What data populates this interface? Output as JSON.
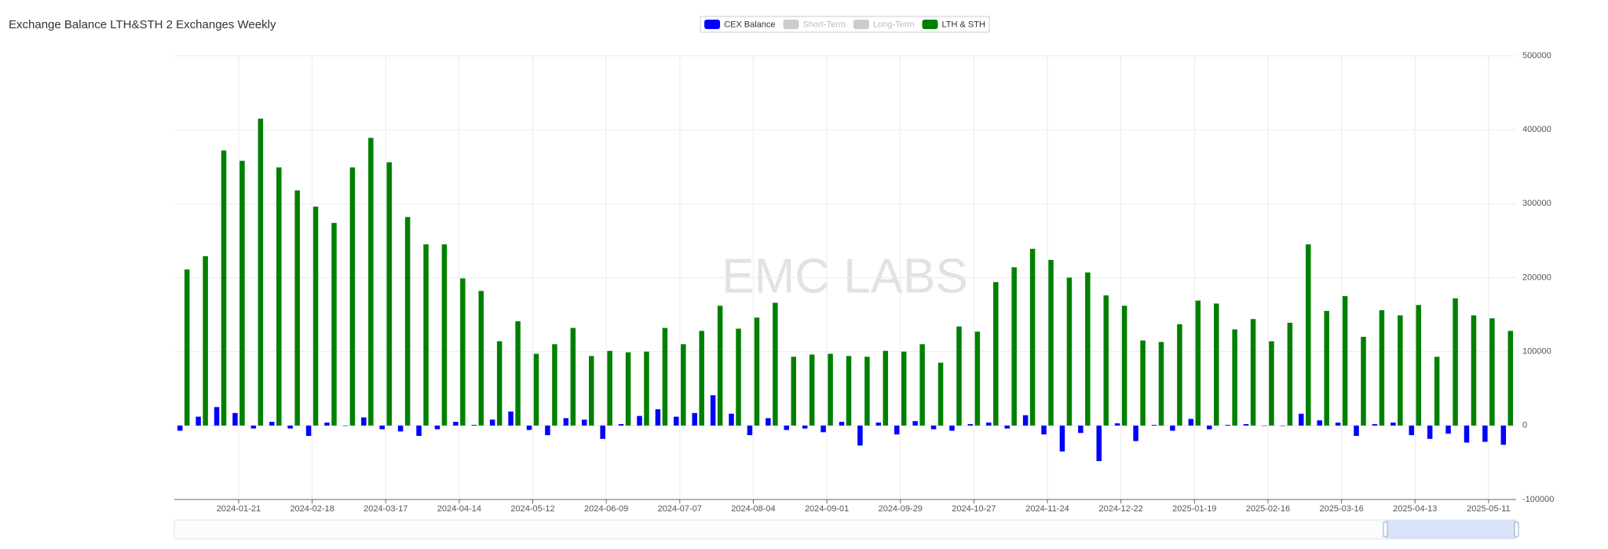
{
  "chart_data": {
    "type": "bar",
    "title": "Exchange Balance LTH&STH 2 Exchanges Weekly",
    "watermark": "EMC LABS",
    "categories": [
      null,
      null,
      null,
      "2024-01-21",
      null,
      null,
      null,
      "2024-02-18",
      null,
      null,
      null,
      "2024-03-17",
      null,
      null,
      null,
      "2024-04-14",
      null,
      null,
      null,
      "2024-05-12",
      null,
      null,
      null,
      "2024-06-09",
      null,
      null,
      null,
      "2024-07-07",
      null,
      null,
      null,
      "2024-08-04",
      null,
      null,
      null,
      "2024-09-01",
      null,
      null,
      null,
      "2024-09-29",
      null,
      null,
      null,
      "2024-10-27",
      null,
      null,
      null,
      "2024-11-24",
      null,
      null,
      null,
      "2024-12-22",
      null,
      null,
      null,
      "2025-01-19",
      null,
      null,
      null,
      "2025-02-16",
      null,
      null,
      null,
      "2025-03-16",
      null,
      null,
      null,
      "2025-04-13",
      null,
      null,
      null,
      "2025-05-11",
      null
    ],
    "series": [
      {
        "name": "CEX Balance",
        "color": "#0000ff",
        "values": [
          -7000,
          12000,
          25000,
          17000,
          -4000,
          5000,
          -4000,
          -14000,
          4000,
          0,
          11000,
          -5000,
          -8000,
          -14000,
          -5000,
          5000,
          1000,
          8000,
          19000,
          -6000,
          -13000,
          10000,
          8000,
          -18000,
          2000,
          13000,
          22000,
          12000,
          17000,
          41000,
          16000,
          -13000,
          10000,
          -6000,
          -4000,
          -9000,
          5000,
          -27000,
          4000,
          -12000,
          6000,
          -5000,
          -7000,
          2000,
          4000,
          -4000,
          14000,
          -12000,
          -35000,
          -10000,
          -48000,
          3000,
          -21000,
          1000,
          -7000,
          9000,
          -5000,
          1000,
          2000,
          0,
          0,
          16000,
          7000,
          4000,
          -14000,
          2000,
          4000,
          -13000,
          -18000,
          -11000,
          -23000,
          -22000,
          -26000
        ]
      },
      {
        "name": "Short-Term",
        "color": "#cccccc",
        "hidden": true
      },
      {
        "name": "Long-Term",
        "color": "#cccccc",
        "hidden": true
      },
      {
        "name": "LTH & STH",
        "color": "#008000",
        "values": [
          211000,
          229000,
          372000,
          358000,
          415000,
          349000,
          318000,
          296000,
          274000,
          349000,
          389000,
          356000,
          282000,
          245000,
          245000,
          199000,
          182000,
          114000,
          141000,
          97000,
          110000,
          132000,
          94000,
          101000,
          99000,
          100000,
          132000,
          110000,
          128000,
          162000,
          131000,
          146000,
          166000,
          93000,
          96000,
          97000,
          94000,
          93000,
          101000,
          100000,
          110000,
          85000,
          134000,
          127000,
          194000,
          214000,
          239000,
          224000,
          200000,
          207000,
          176000,
          162000,
          115000,
          113000,
          137000,
          169000,
          165000,
          130000,
          144000,
          114000,
          139000,
          245000,
          155000,
          175000,
          120000,
          156000,
          149000,
          163000,
          93000,
          172000,
          149000,
          145000,
          128000
        ]
      }
    ],
    "ylim": [
      -100000,
      500000
    ],
    "yticks": [
      -100000,
      0,
      100000,
      200000,
      300000,
      400000,
      500000
    ],
    "grid": true
  }
}
